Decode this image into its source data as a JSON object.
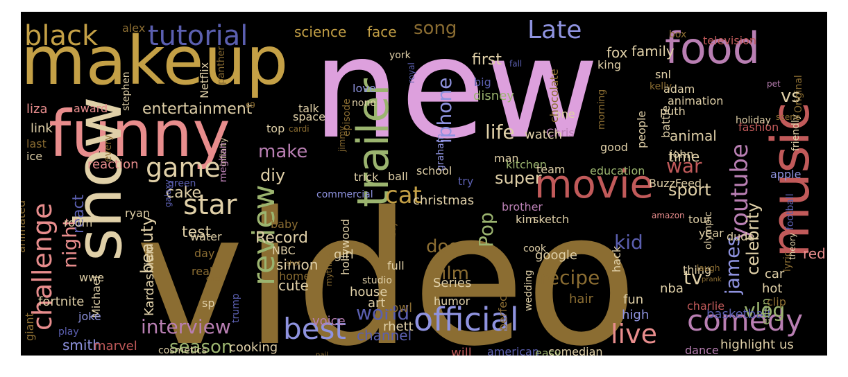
{
  "palette": {
    "background": "#000000",
    "page": "#ffffff",
    "pink": "#dda0dd",
    "olive": "#8b6d32",
    "gold": "#c4a046",
    "salmon": "#e88d8d",
    "rose": "#c15a5a",
    "blue": "#5b5fb0",
    "lightblue": "#8f93e0",
    "green": "#9bb46f",
    "mauve": "#b97fb3",
    "cream": "#e0d0a8"
  },
  "words": [
    {
      "text": "new",
      "color": "#dda0dd"
    },
    {
      "text": "video",
      "color": "#8b6d32"
    },
    {
      "text": "makeup",
      "color": "#c4a046"
    },
    {
      "text": "funny",
      "color": "#e88d8d"
    },
    {
      "text": "show",
      "color": "#e0d0a8"
    },
    {
      "text": "trailer",
      "color": "#9bb46f"
    },
    {
      "text": "music",
      "color": "#c15a5a"
    },
    {
      "text": "food",
      "color": "#b97fb3"
    },
    {
      "text": "movie",
      "color": "#c15a5a"
    },
    {
      "text": "best",
      "color": "#8f93e0"
    },
    {
      "text": "comedy",
      "color": "#b97fb3"
    },
    {
      "text": "official",
      "color": "#8f93e0"
    },
    {
      "text": "review",
      "color": "#9bb46f"
    },
    {
      "text": "tutorial",
      "color": "#5b5fb0"
    },
    {
      "text": "black",
      "color": "#c4a046"
    },
    {
      "text": "game",
      "color": "#e0d0a8"
    },
    {
      "text": "challenge",
      "color": "#e88d8d"
    },
    {
      "text": "star",
      "color": "#e0d0a8"
    },
    {
      "text": "cat",
      "color": "#c4a046"
    },
    {
      "text": "youtube",
      "color": "#b97fb3"
    },
    {
      "text": "live",
      "color": "#e88d8d"
    },
    {
      "text": "Late",
      "color": "#8f93e0"
    },
    {
      "text": "song",
      "color": "#8b6d32"
    },
    {
      "text": "interview",
      "color": "#b97fb3"
    },
    {
      "text": "world",
      "color": "#5b5fb0"
    },
    {
      "text": "recipe",
      "color": "#8b6d32"
    },
    {
      "text": "vlog",
      "color": "#9bb46f"
    },
    {
      "text": "james",
      "color": "#8f93e0"
    },
    {
      "text": "night",
      "color": "#e88d8d"
    },
    {
      "text": "kid",
      "color": "#5b5fb0"
    },
    {
      "text": "Pop",
      "color": "#9bb46f"
    },
    {
      "text": "life",
      "color": "#e0d0a8"
    },
    {
      "text": "iphone",
      "color": "#8f93e0"
    },
    {
      "text": "war",
      "color": "#c15a5a"
    },
    {
      "text": "tv",
      "color": "#e0d0a8"
    },
    {
      "text": "vs",
      "color": "#e0d0a8"
    },
    {
      "text": "season",
      "color": "#9bb46f"
    },
    {
      "text": "entertainment",
      "color": "#e0d0a8"
    },
    {
      "text": "make",
      "color": "#b97fb3"
    },
    {
      "text": "diy",
      "color": "#e0d0a8"
    },
    {
      "text": "react",
      "color": "#5b5fb0"
    },
    {
      "text": "beauty",
      "color": "#e0d0a8"
    },
    {
      "text": "film",
      "color": "#8b6d32"
    },
    {
      "text": "dog",
      "color": "#8b6d32"
    },
    {
      "text": "celebrity",
      "color": "#e0d0a8"
    },
    {
      "text": "sport",
      "color": "#e0d0a8"
    },
    {
      "text": "super",
      "color": "#e0d0a8"
    },
    {
      "text": "cake",
      "color": "#e0d0a8"
    },
    {
      "text": "Record",
      "color": "#e0d0a8"
    },
    {
      "text": "test",
      "color": "#e0d0a8"
    },
    {
      "text": "first",
      "color": "#e0d0a8"
    },
    {
      "text": "family",
      "color": "#e0d0a8"
    },
    {
      "text": "animal",
      "color": "#e0d0a8"
    },
    {
      "text": "time",
      "color": "#e0d0a8"
    },
    {
      "text": "science",
      "color": "#c4a046"
    },
    {
      "text": "face",
      "color": "#c4a046"
    },
    {
      "text": "fox",
      "color": "#e0d0a8"
    },
    {
      "text": "channel",
      "color": "#5b5fb0"
    },
    {
      "text": "smith",
      "color": "#8f93e0"
    },
    {
      "text": "cooking",
      "color": "#e0d0a8"
    },
    {
      "text": "marvel",
      "color": "#c15a5a"
    },
    {
      "text": "christmas",
      "color": "#e0d0a8"
    },
    {
      "text": "Series",
      "color": "#e0d0a8"
    },
    {
      "text": "simon",
      "color": "#e0d0a8"
    },
    {
      "text": "cute",
      "color": "#e0d0a8"
    },
    {
      "text": "house",
      "color": "#e0d0a8"
    },
    {
      "text": "art",
      "color": "#e0d0a8"
    },
    {
      "text": "bowl",
      "color": "#8b6d32"
    },
    {
      "text": "rhett",
      "color": "#e0d0a8"
    },
    {
      "text": "voice",
      "color": "#b97fb3"
    },
    {
      "text": "will",
      "color": "#c15a5a"
    },
    {
      "text": "american",
      "color": "#5b5fb0"
    },
    {
      "text": "comedian",
      "color": "#e0d0a8"
    },
    {
      "text": "dance",
      "color": "#b97fb3"
    },
    {
      "text": "highlight",
      "color": "#e0d0a8"
    },
    {
      "text": "us",
      "color": "#e0d0a8"
    },
    {
      "text": "basketball",
      "color": "#5b5fb0"
    },
    {
      "text": "charlie",
      "color": "#c15a5a"
    },
    {
      "text": "high",
      "color": "#8f93e0"
    },
    {
      "text": "fun",
      "color": "#e0d0a8"
    },
    {
      "text": "hair",
      "color": "#8b6d32"
    },
    {
      "text": "nba",
      "color": "#e0d0a8"
    },
    {
      "text": "hot",
      "color": "#e0d0a8"
    },
    {
      "text": "car",
      "color": "#e0d0a8"
    },
    {
      "text": "red",
      "color": "#e88d8d"
    },
    {
      "text": "clip",
      "color": "#8b6d32"
    },
    {
      "text": "ellen",
      "color": "#9bb46f"
    },
    {
      "text": "thing",
      "color": "#e0d0a8"
    },
    {
      "text": "google",
      "color": "#e0d0a8"
    },
    {
      "text": "hack",
      "color": "#e0d0a8"
    },
    {
      "text": "perfect",
      "color": "#8b6d32"
    },
    {
      "text": "easy",
      "color": "#9bb46f"
    },
    {
      "text": "wedding",
      "color": "#e0d0a8"
    },
    {
      "text": "cook",
      "color": "#e0d0a8"
    },
    {
      "text": "humor",
      "color": "#e0d0a8"
    },
    {
      "text": "full",
      "color": "#e0d0a8"
    },
    {
      "text": "girl",
      "color": "#e0d0a8"
    },
    {
      "text": "home",
      "color": "#8b6d32"
    },
    {
      "text": "NBC",
      "color": "#e0d0a8"
    },
    {
      "text": "baby",
      "color": "#8b6d32"
    },
    {
      "text": "real",
      "color": "#8b6d32"
    },
    {
      "text": "day",
      "color": "#8b6d32"
    },
    {
      "text": "water",
      "color": "#e0d0a8"
    },
    {
      "text": "room",
      "color": "#e0d0a8"
    },
    {
      "text": "ryan",
      "color": "#e0d0a8"
    },
    {
      "text": "Kardashian",
      "color": "#e0d0a8"
    },
    {
      "text": "Michael",
      "color": "#e0d0a8"
    },
    {
      "text": "wwe",
      "color": "#e0d0a8"
    },
    {
      "text": "fortnite",
      "color": "#e0d0a8"
    },
    {
      "text": "sp",
      "color": "#e0d0a8"
    },
    {
      "text": "joke",
      "color": "#8f93e0"
    },
    {
      "text": "play",
      "color": "#5b5fb0"
    },
    {
      "text": "cosmetics",
      "color": "#e0d0a8"
    },
    {
      "text": "giant",
      "color": "#8b6d32"
    },
    {
      "text": "animated",
      "color": "#8b6d32"
    },
    {
      "text": "reaction",
      "color": "#e88d8d"
    },
    {
      "text": "link",
      "color": "#e0d0a8"
    },
    {
      "text": "last",
      "color": "#8b6d32"
    },
    {
      "text": "ice",
      "color": "#e0d0a8"
    },
    {
      "text": "award",
      "color": "#e88d8d"
    },
    {
      "text": "liza",
      "color": "#e88d8d"
    },
    {
      "text": "alex",
      "color": "#8b6d32"
    },
    {
      "text": "stephen",
      "color": "#e0d0a8"
    },
    {
      "text": "panther",
      "color": "#8b6d32"
    },
    {
      "text": "Netflix",
      "color": "#e0d0a8"
    },
    {
      "text": "every",
      "color": "#8b6d32"
    },
    {
      "text": "galaxy",
      "color": "#5b5fb0"
    },
    {
      "text": "infinity",
      "color": "#e0d0a8"
    },
    {
      "text": "meghan",
      "color": "#b97fb3"
    },
    {
      "text": "green",
      "color": "#5b5fb0"
    },
    {
      "text": "s9",
      "color": "#8b6d32"
    },
    {
      "text": "talk",
      "color": "#e0d0a8"
    },
    {
      "text": "space",
      "color": "#e0d0a8"
    },
    {
      "text": "top",
      "color": "#e0d0a8"
    },
    {
      "text": "cardi",
      "color": "#8b6d32"
    },
    {
      "text": "jimmy",
      "color": "#8b6d32"
    },
    {
      "text": "episode",
      "color": "#8b6d32"
    },
    {
      "text": "love",
      "color": "#8f93e0"
    },
    {
      "text": "none",
      "color": "#e0d0a8"
    },
    {
      "text": "york",
      "color": "#e0d0a8"
    },
    {
      "text": "royal",
      "color": "#5b5fb0"
    },
    {
      "text": "big",
      "color": "#5b5fb0"
    },
    {
      "text": "disney",
      "color": "#9bb46f"
    },
    {
      "text": "man",
      "color": "#e0d0a8"
    },
    {
      "text": "graham",
      "color": "#8f93e0"
    },
    {
      "text": "trick",
      "color": "#e0d0a8"
    },
    {
      "text": "ball",
      "color": "#e0d0a8"
    },
    {
      "text": "try",
      "color": "#5b5fb0"
    },
    {
      "text": "commercial",
      "color": "#8f93e0"
    },
    {
      "text": "school",
      "color": "#e0d0a8"
    },
    {
      "text": "boy",
      "color": "#8b6d32"
    },
    {
      "text": "hollywood",
      "color": "#e0d0a8"
    },
    {
      "text": "studio",
      "color": "#e0d0a8"
    },
    {
      "text": "mythical",
      "color": "#8b6d32"
    },
    {
      "text": "trump",
      "color": "#5b5fb0"
    },
    {
      "text": "shot",
      "color": "#8b6d32"
    },
    {
      "text": "chef",
      "color": "#8b6d32"
    },
    {
      "text": "nail",
      "color": "#8b6d32"
    },
    {
      "text": "kitchen",
      "color": "#9bb46f"
    },
    {
      "text": "brother",
      "color": "#b97fb3"
    },
    {
      "text": "kim",
      "color": "#e0d0a8"
    },
    {
      "text": "sketch",
      "color": "#e0d0a8"
    },
    {
      "text": "one",
      "color": "#e0d0a8"
    },
    {
      "text": "Chris",
      "color": "#b97fb3"
    },
    {
      "text": "chocolate",
      "color": "#8b6d32"
    },
    {
      "text": "morning",
      "color": "#8b6d32"
    },
    {
      "text": "team",
      "color": "#e0d0a8"
    },
    {
      "text": "education",
      "color": "#9bb46f"
    },
    {
      "text": "BuzzFeed",
      "color": "#e0d0a8"
    },
    {
      "text": "good",
      "color": "#e0d0a8"
    },
    {
      "text": "people",
      "color": "#e0d0a8"
    },
    {
      "text": "john",
      "color": "#e0d0a8"
    },
    {
      "text": "tour",
      "color": "#e0d0a8"
    },
    {
      "text": "olympic",
      "color": "#e0d0a8"
    },
    {
      "text": "amazon",
      "color": "#e88d8d"
    },
    {
      "text": "year",
      "color": "#e0d0a8"
    },
    {
      "text": "dude",
      "color": "#e0d0a8"
    },
    {
      "text": "apple",
      "color": "#8f93e0"
    },
    {
      "text": "laugh",
      "color": "#8b6d32"
    },
    {
      "text": "prank",
      "color": "#8b6d32"
    },
    {
      "text": "watch",
      "color": "#e0d0a8"
    },
    {
      "text": "king",
      "color": "#e0d0a8"
    },
    {
      "text": "snl",
      "color": "#e0d0a8"
    },
    {
      "text": "kelly",
      "color": "#8b6d32"
    },
    {
      "text": "adam",
      "color": "#e0d0a8"
    },
    {
      "text": "animation",
      "color": "#e0d0a8"
    },
    {
      "text": "puth",
      "color": "#e0d0a8"
    },
    {
      "text": "battle",
      "color": "#e0d0a8"
    },
    {
      "text": "box",
      "color": "#8b6d32"
    },
    {
      "text": "television",
      "color": "#c15a5a"
    },
    {
      "text": "fall",
      "color": "#5b5fb0"
    },
    {
      "text": "Original",
      "color": "#8b6d32"
    },
    {
      "text": "friendly",
      "color": "#e0d0a8"
    },
    {
      "text": "pet",
      "color": "#b97fb3"
    },
    {
      "text": "holiday",
      "color": "#e0d0a8"
    },
    {
      "text": "scene",
      "color": "#8b6d32"
    },
    {
      "text": "fashion",
      "color": "#c15a5a"
    },
    {
      "text": "theory",
      "color": "#e0d0a8"
    },
    {
      "text": "lyric",
      "color": "#8b6d32"
    },
    {
      "text": "football",
      "color": "#5b5fb0"
    }
  ]
}
